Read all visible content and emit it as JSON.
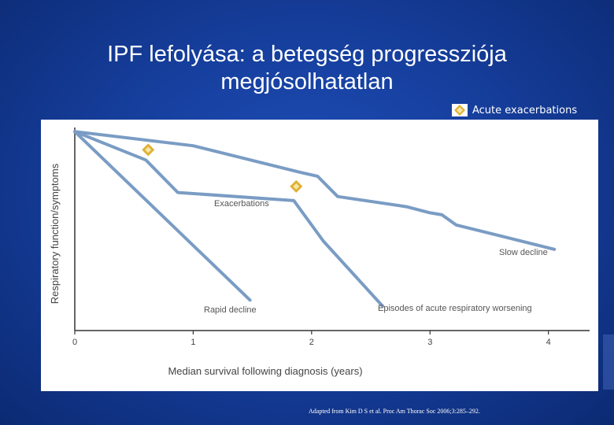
{
  "slide": {
    "title_line1": "IPF lefolyása: a betegség progressziója",
    "title_line2": "megjósolhatatlan",
    "legend_label": "Acute exacerbations",
    "footnote": "Adapted from Kim D S et al. Proc Am Thorac Soc 2006;3:285–292."
  },
  "colors": {
    "background": "#163f9e",
    "line": "#7a9cc4",
    "marker_outer": "#e0b030",
    "marker_inner": "#f5e6a8",
    "axis": "#333333",
    "text": "#444444"
  },
  "chart_data": {
    "type": "line",
    "xlabel": "Median survival following diagnosis (years)",
    "ylabel": "Respiratory function/symptoms",
    "xlim": [
      0,
      4.7
    ],
    "ylim": [
      0,
      100
    ],
    "xticks": [
      0,
      1,
      2,
      3,
      4
    ],
    "grid": false,
    "legend": "top-right",
    "series": [
      {
        "name": "Slow decline",
        "points": [
          [
            0,
            98
          ],
          [
            1.0,
            91
          ],
          [
            1.9,
            78
          ],
          [
            2.05,
            76
          ],
          [
            2.22,
            66
          ],
          [
            2.8,
            61
          ],
          [
            3.0,
            58
          ],
          [
            3.1,
            57
          ],
          [
            3.22,
            52
          ],
          [
            4.05,
            40
          ]
        ]
      },
      {
        "name": "Exacerbations",
        "points": [
          [
            0,
            98
          ],
          [
            0.6,
            84
          ],
          [
            0.87,
            68
          ],
          [
            1.85,
            64
          ],
          [
            2.1,
            44
          ],
          [
            2.6,
            12
          ]
        ]
      },
      {
        "name": "Rapid decline",
        "points": [
          [
            0,
            98
          ],
          [
            1.48,
            15
          ]
        ]
      }
    ],
    "curve_labels": [
      "Exacerbations",
      "Slow decline",
      "Episodes of acute respiratory worsening",
      "Rapid decline"
    ],
    "acute_exacerbation_markers": [
      [
        0.62,
        89
      ],
      [
        1.87,
        71
      ]
    ]
  }
}
